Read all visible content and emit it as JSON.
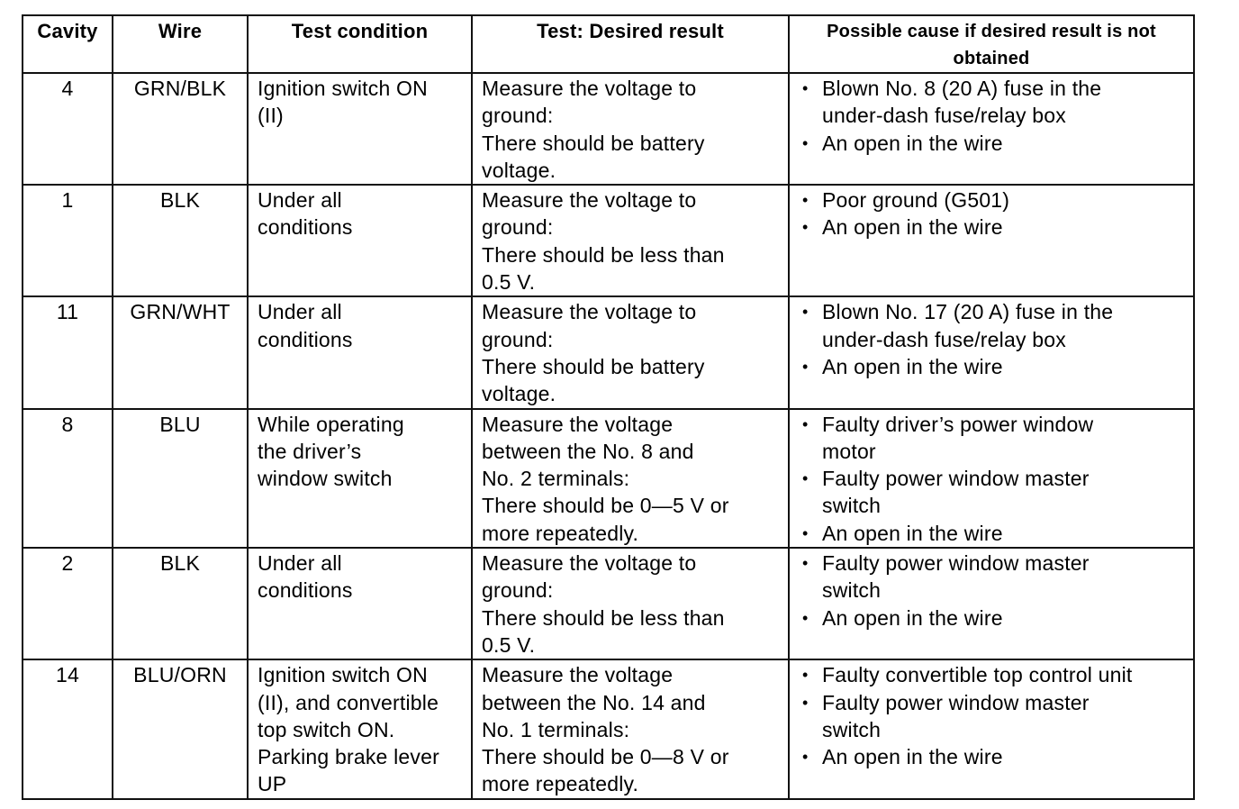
{
  "table": {
    "headers": [
      "Cavity",
      "Wire",
      "Test condition",
      "Test: Desired result",
      "Possible cause if desired result is not obtained"
    ],
    "rows": [
      {
        "cavity": "4",
        "wire": "GRN/BLK",
        "condition": [
          "Ignition switch ON",
          "(II)"
        ],
        "result": [
          "Measure the voltage to",
          "ground:",
          "There should be battery",
          "voltage."
        ],
        "causes": [
          [
            "Blown No. 8 (20 A) fuse in the",
            "under-dash fuse/relay box"
          ],
          [
            "An open in the wire"
          ]
        ]
      },
      {
        "cavity": "1",
        "wire": "BLK",
        "condition": [
          "Under all",
          "conditions"
        ],
        "result": [
          "Measure the voltage to",
          "ground:",
          "There should be less than",
          "0.5 V."
        ],
        "causes": [
          [
            "Poor ground (G501)"
          ],
          [
            "An open in the wire"
          ]
        ]
      },
      {
        "cavity": "11",
        "wire": "GRN/WHT",
        "condition": [
          "Under all",
          "conditions"
        ],
        "result": [
          "Measure the voltage to",
          "ground:",
          "There should be battery",
          "voltage."
        ],
        "causes": [
          [
            "Blown No. 17 (20 A) fuse in the",
            "under-dash fuse/relay box"
          ],
          [
            "An open in the wire"
          ]
        ]
      },
      {
        "cavity": "8",
        "wire": "BLU",
        "condition": [
          "While operating",
          "the driver’s",
          "window switch"
        ],
        "result": [
          "Measure the voltage",
          "between the No. 8 and",
          "No. 2 terminals:",
          "There should be 0—5 V or",
          "more repeatedly."
        ],
        "causes": [
          [
            "Faulty driver’s power window",
            "motor"
          ],
          [
            "Faulty power window master",
            "switch"
          ],
          [
            "An open in the wire"
          ]
        ]
      },
      {
        "cavity": "2",
        "wire": "BLK",
        "condition": [
          "Under all",
          "conditions"
        ],
        "result": [
          "Measure the voltage to",
          "ground:",
          "There should be less than",
          "0.5 V."
        ],
        "causes": [
          [
            "Faulty power window master",
            "switch"
          ],
          [
            "An open in the wire"
          ]
        ]
      },
      {
        "cavity": "14",
        "wire": "BLU/ORN",
        "condition": [
          "Ignition switch ON",
          "(II), and convertible",
          "top switch ON.",
          "Parking brake lever",
          "UP"
        ],
        "result": [
          "Measure the voltage",
          "between the No. 14 and",
          "No. 1 terminals:",
          "There should be 0—8 V or",
          "more repeatedly."
        ],
        "causes": [
          [
            "Faulty convertible top control unit"
          ],
          [
            "Faulty power window master",
            "switch"
          ],
          [
            "An open in the wire"
          ]
        ]
      }
    ]
  }
}
